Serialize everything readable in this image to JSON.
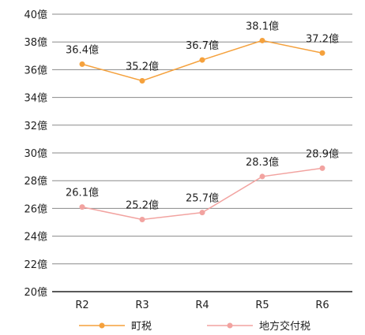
{
  "chart_data": {
    "type": "line",
    "categories": [
      "R2",
      "R3",
      "R4",
      "R5",
      "R6"
    ],
    "ylim": [
      20,
      40
    ],
    "ystep": 2,
    "y_tick_suffix": "億",
    "grid": true,
    "legend_position": "bottom",
    "series": [
      {
        "name": "町税",
        "values": [
          36.4,
          35.2,
          36.7,
          38.1,
          37.2
        ],
        "labels": [
          "36.4億",
          "35.2億",
          "36.7億",
          "38.1億",
          "37.2億"
        ],
        "color": "#f5a13c"
      },
      {
        "name": "地方交付税",
        "values": [
          26.1,
          25.2,
          25.7,
          28.3,
          28.9
        ],
        "labels": [
          "26.1億",
          "25.2億",
          "25.7億",
          "28.3億",
          "28.9億"
        ],
        "color": "#f2a3a0"
      }
    ]
  }
}
